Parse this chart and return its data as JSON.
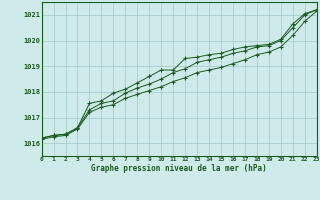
{
  "title": "Graphe pression niveau de la mer (hPa)",
  "bg_color": "#ceeaea",
  "grid_color": "#a8cece",
  "line_color": "#1a5c1a",
  "xlim": [
    0,
    23
  ],
  "ylim": [
    1015.5,
    1021.5
  ],
  "yticks": [
    1016,
    1017,
    1018,
    1019,
    1020,
    1021
  ],
  "xticks": [
    0,
    1,
    2,
    3,
    4,
    5,
    6,
    7,
    8,
    9,
    10,
    11,
    12,
    13,
    14,
    15,
    16,
    17,
    18,
    19,
    20,
    21,
    22,
    23
  ],
  "series1_x": [
    0,
    1,
    2,
    3,
    4,
    5,
    6,
    7,
    8,
    9,
    10,
    11,
    12,
    13,
    14,
    15,
    16,
    17,
    18,
    19,
    20,
    21,
    22,
    23
  ],
  "series1_y": [
    1016.2,
    1016.3,
    1016.35,
    1016.6,
    1017.55,
    1017.65,
    1017.95,
    1018.1,
    1018.35,
    1018.6,
    1018.85,
    1018.85,
    1019.3,
    1019.35,
    1019.45,
    1019.5,
    1019.65,
    1019.75,
    1019.8,
    1019.85,
    1020.05,
    1020.65,
    1021.05,
    1021.2
  ],
  "series2_x": [
    0,
    1,
    2,
    3,
    4,
    5,
    6,
    7,
    8,
    9,
    10,
    11,
    12,
    13,
    14,
    15,
    16,
    17,
    18,
    19,
    20,
    21,
    22,
    23
  ],
  "series2_y": [
    1016.2,
    1016.3,
    1016.35,
    1016.6,
    1017.3,
    1017.55,
    1017.65,
    1017.95,
    1018.15,
    1018.3,
    1018.5,
    1018.75,
    1018.9,
    1019.15,
    1019.25,
    1019.35,
    1019.5,
    1019.6,
    1019.75,
    1019.8,
    1020.0,
    1020.5,
    1021.0,
    1021.2
  ],
  "series3_x": [
    0,
    1,
    2,
    3,
    4,
    5,
    6,
    7,
    8,
    9,
    10,
    11,
    12,
    13,
    14,
    15,
    16,
    17,
    18,
    19,
    20,
    21,
    22,
    23
  ],
  "series3_y": [
    1016.15,
    1016.25,
    1016.3,
    1016.55,
    1017.2,
    1017.4,
    1017.5,
    1017.75,
    1017.9,
    1018.05,
    1018.2,
    1018.4,
    1018.55,
    1018.75,
    1018.85,
    1018.95,
    1019.1,
    1019.25,
    1019.45,
    1019.55,
    1019.75,
    1020.2,
    1020.75,
    1021.15
  ]
}
